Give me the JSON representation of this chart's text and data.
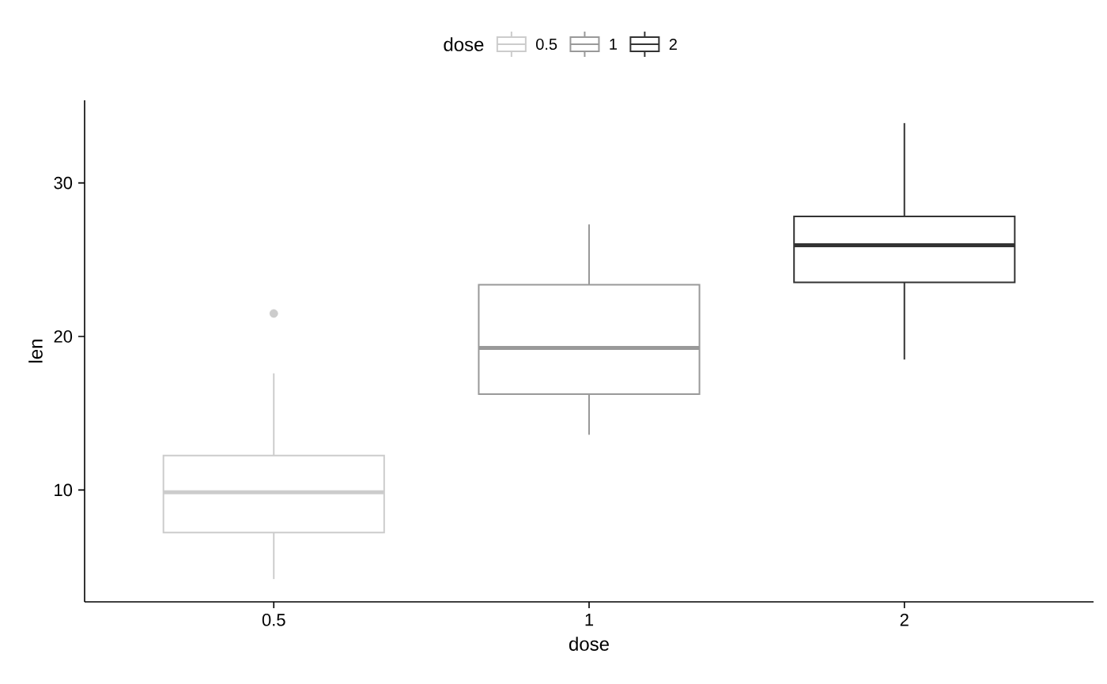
{
  "chart_data": {
    "type": "box",
    "xlabel": "dose",
    "ylabel": "len",
    "legend_title": "dose",
    "legend": "top",
    "categories": [
      "0.5",
      "1",
      "2"
    ],
    "ylim": [
      2.715,
      35.385
    ],
    "yticks": [
      10,
      20,
      30
    ],
    "series": [
      {
        "name": "0.5",
        "color": "#cccccc",
        "boxes": [
          {
            "low": 4.2,
            "q1": 7.225,
            "median": 9.85,
            "q3": 12.25,
            "high": 17.6,
            "outliers": [
              21.5
            ]
          },
          null,
          null
        ]
      },
      {
        "name": "1",
        "color": "#999999",
        "boxes": [
          null,
          {
            "low": 13.6,
            "q1": 16.25,
            "median": 19.25,
            "q3": 23.375,
            "high": 27.3
          },
          null
        ]
      },
      {
        "name": "2",
        "color": "#333333",
        "boxes": [
          null,
          null,
          {
            "low": 18.5,
            "q1": 23.525,
            "median": 25.95,
            "q3": 27.825,
            "high": 33.9
          }
        ]
      }
    ]
  }
}
